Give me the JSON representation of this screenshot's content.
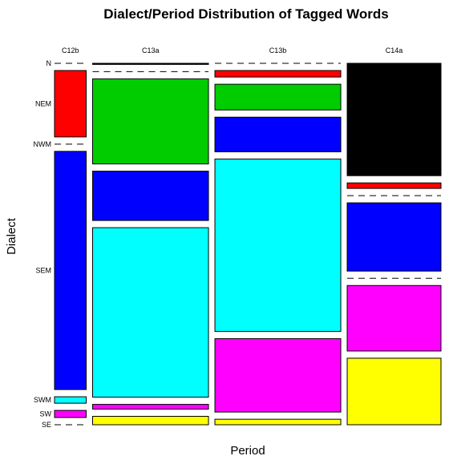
{
  "chart_data": {
    "type": "mosaic",
    "title": "Dialect/Period Distribution of Tagged Words",
    "xlabel": "Period",
    "ylabel": "Dialect",
    "periods": [
      "C12b",
      "C13a",
      "C13b",
      "C14a"
    ],
    "period_widths": [
      0.076,
      0.278,
      0.302,
      0.225
    ],
    "dialects": [
      "N",
      "NEM",
      "NWM",
      "SEM",
      "SWM",
      "SW",
      "SE"
    ],
    "colors": {
      "N": "#000000",
      "NEM": "#ff0000",
      "NWM": "#00cc00",
      "SEM": "#0000ff",
      "SWM": "#00ffff",
      "SW": "#ff00ff",
      "SE": "#ffff00"
    },
    "proportions": {
      "C12b": {
        "N": 0.0,
        "NEM": 0.196,
        "NWM": 0.0,
        "SEM": 0.703,
        "SWM": 0.019,
        "SW": 0.021,
        "SE": 0.0
      },
      "C13a": {
        "N": 0.003,
        "NEM": 0.0,
        "NWM": 0.233,
        "SEM": 0.135,
        "SWM": 0.464,
        "SW": 0.013,
        "SE": 0.023
      },
      "C13b": {
        "N": 0.0,
        "NEM": 0.019,
        "NWM": 0.075,
        "SEM": 0.101,
        "SWM": 0.503,
        "SW": 0.214,
        "SE": 0.016
      },
      "C14a": {
        "N": 0.326,
        "NEM": 0.016,
        "NWM": 0.0,
        "SEM": 0.198,
        "SWM": 0.0,
        "SW": 0.19,
        "SE": 0.193
      }
    }
  }
}
